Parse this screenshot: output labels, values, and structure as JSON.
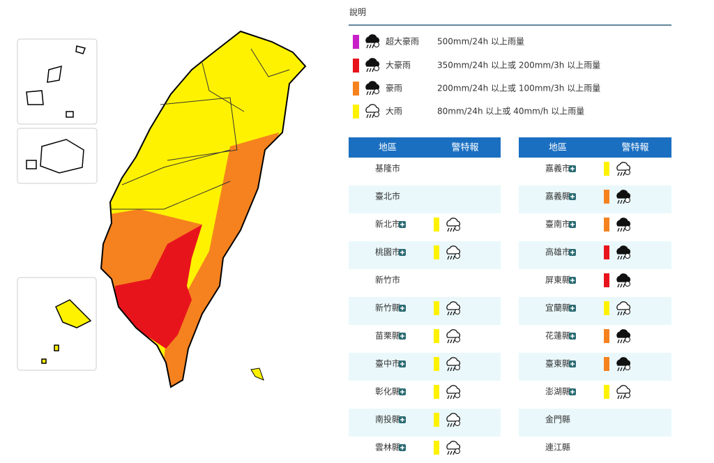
{
  "legend": {
    "title": "說明",
    "items": [
      {
        "color": "#c81fc8",
        "name": "超大豪雨",
        "desc": "500mm/24h 以上雨量"
      },
      {
        "color": "#e8141c",
        "name": "大豪雨",
        "desc": "350mm/24h 以上或 200mm/3h 以上雨量"
      },
      {
        "color": "#f5821f",
        "name": "豪雨",
        "desc": "200mm/24h 以上或 100mm/3h 以上雨量"
      },
      {
        "color": "#fff200",
        "name": "大雨",
        "desc": "80mm/24h 以上或 40mm/h 以上雨量"
      }
    ]
  },
  "tables": [
    {
      "headers": [
        "地區",
        "警特報"
      ],
      "rows": [
        {
          "area": "基隆市",
          "color": null
        },
        {
          "area": "臺北市",
          "color": null
        },
        {
          "area": "新北市",
          "color": "#fff200"
        },
        {
          "area": "桃園市",
          "color": "#fff200"
        },
        {
          "area": "新竹市",
          "color": null
        },
        {
          "area": "新竹縣",
          "color": "#fff200"
        },
        {
          "area": "苗栗縣",
          "color": "#fff200"
        },
        {
          "area": "臺中市",
          "color": "#fff200"
        },
        {
          "area": "彰化縣",
          "color": "#fff200"
        },
        {
          "area": "南投縣",
          "color": "#fff200"
        },
        {
          "area": "雲林縣",
          "color": "#fff200"
        }
      ]
    },
    {
      "headers": [
        "地區",
        "警特報"
      ],
      "rows": [
        {
          "area": "嘉義市",
          "color": "#fff200"
        },
        {
          "area": "嘉義縣",
          "color": "#f5821f"
        },
        {
          "area": "臺南市",
          "color": "#f5821f"
        },
        {
          "area": "高雄市",
          "color": "#e8141c"
        },
        {
          "area": "屏東縣",
          "color": "#e8141c"
        },
        {
          "area": "宜蘭縣",
          "color": "#fff200"
        },
        {
          "area": "花蓮縣",
          "color": "#f5821f"
        },
        {
          "area": "臺東縣",
          "color": "#f5821f"
        },
        {
          "area": "澎湖縣",
          "color": "#fff200"
        },
        {
          "area": "金門縣",
          "color": null
        },
        {
          "area": "連江縣",
          "color": null
        }
      ]
    }
  ]
}
